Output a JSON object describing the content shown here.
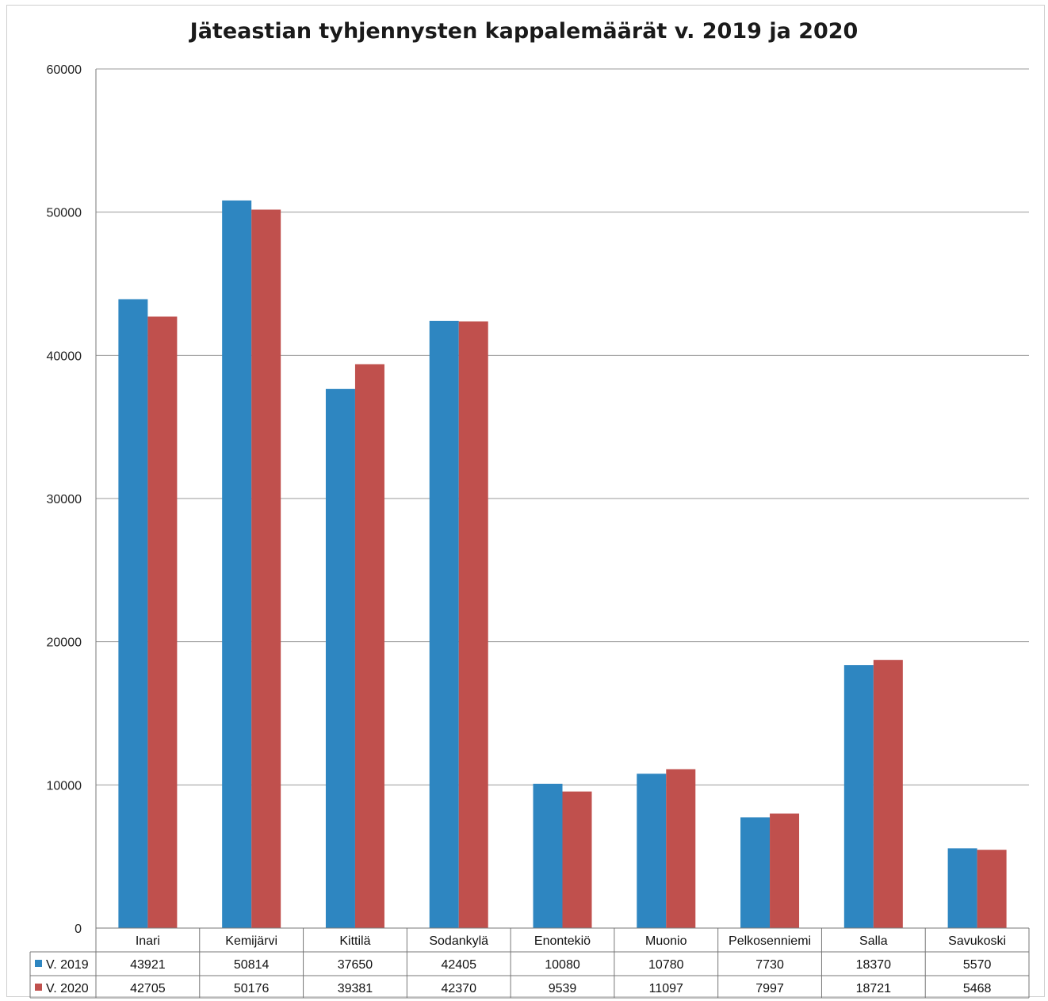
{
  "chart_data": {
    "type": "bar",
    "title": "Jäteastian tyhjennysten kappalemäärät  v. 2019 ja 2020",
    "categories": [
      "Inari",
      "Kemijärvi",
      "Kittilä",
      "Sodankylä",
      "Enontekiö",
      "Muonio",
      "Pelkosenniemi",
      "Salla",
      "Savukoski"
    ],
    "series": [
      {
        "name": "V. 2019",
        "color": "#2e86c1",
        "values": [
          43921,
          50814,
          37650,
          42405,
          10080,
          10780,
          7730,
          18370,
          5570
        ]
      },
      {
        "name": "V. 2020",
        "color": "#c0504d",
        "values": [
          42705,
          50176,
          39381,
          42370,
          9539,
          11097,
          7997,
          18721,
          5468
        ]
      }
    ],
    "ylim": [
      0,
      60000
    ],
    "yticks": [
      0,
      10000,
      20000,
      30000,
      40000,
      50000,
      60000
    ],
    "grid": true,
    "legend": "data-table-left"
  }
}
